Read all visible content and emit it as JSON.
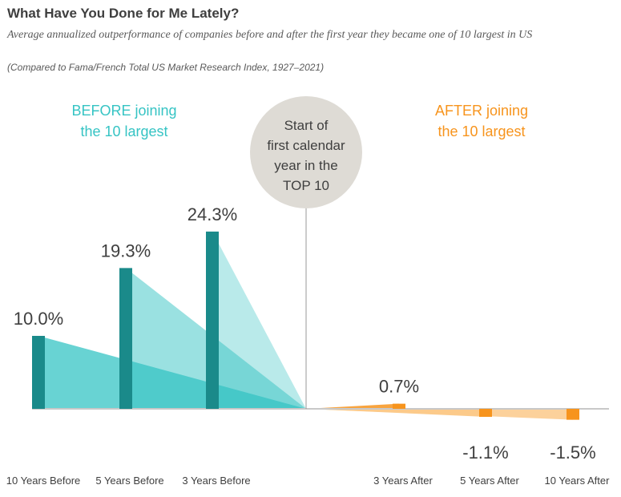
{
  "title": "What Have You Done for Me Lately?",
  "subtitle": "Average annualized outperformance of companies before and after the first year they became one of 10 largest in US",
  "note": "(Compared to Fama/French Total US Market Research Index, 1927–2021)",
  "colors": {
    "before": "#1a8a8a",
    "before_light": "#36c4c4",
    "after": "#f7941d",
    "after_light": "#fbc98a",
    "circle": "#dedbd5",
    "axis": "#c8c8c8"
  },
  "before_group_label": [
    "BEFORE joining",
    "the 10 largest"
  ],
  "after_group_label": [
    "AFTER joining",
    "the 10 largest"
  ],
  "center_label": [
    "Start of",
    "first calendar",
    "year in the",
    "TOP 10"
  ],
  "chart_data": {
    "type": "bar",
    "categories": [
      "10 Years Before",
      "5 Years Before",
      "3 Years Before",
      "3 Years After",
      "5 Years After",
      "10 Years After"
    ],
    "values": [
      10.0,
      19.3,
      24.3,
      0.7,
      -1.1,
      -1.5
    ],
    "value_labels": [
      "10.0%",
      "19.3%",
      "24.3%",
      "0.7%",
      "-1.1%",
      "-1.5%"
    ],
    "title": "What Have You Done for Me Lately?",
    "xlabel": "",
    "ylabel": "",
    "grid": false
  }
}
